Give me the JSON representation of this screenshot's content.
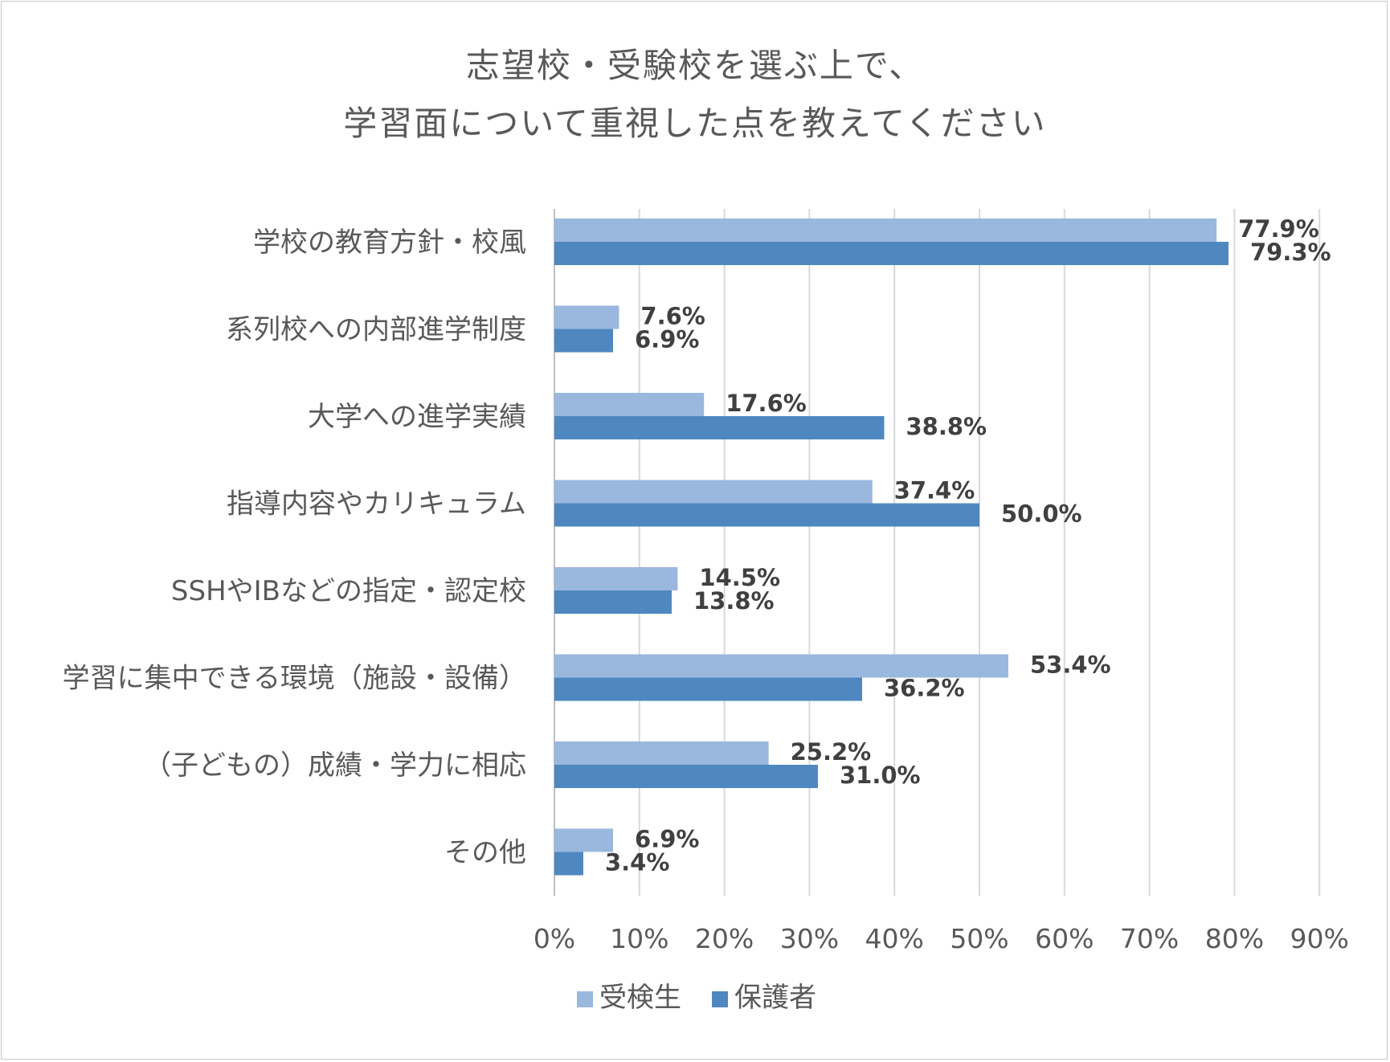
{
  "chart_data": {
    "type": "bar",
    "orientation": "horizontal",
    "title": "志望校・受験校を選ぶ上で、\n学習面について重視した点を教えてください",
    "title_lines": [
      "志望校・受験校を選ぶ上で、",
      "学習面について重視した点を教えてください"
    ],
    "categories": [
      "学校の教育方針・校風",
      "系列校への内部進学制度",
      "大学への進学実績",
      "指導内容やカリキュラム",
      "SSHやIBなどの指定・認定校",
      "学習に集中できる環境（施設・設備）",
      "（子どもの）成績・学力に相応",
      "その他"
    ],
    "series": [
      {
        "name": "受検生",
        "color": "#9ab7de",
        "values": [
          77.9,
          7.6,
          17.6,
          37.4,
          14.5,
          53.4,
          25.2,
          6.9
        ],
        "labels": [
          "77.9%",
          "7.6%",
          "17.6%",
          "37.4%",
          "14.5%",
          "53.4%",
          "25.2%",
          "6.9%"
        ]
      },
      {
        "name": "保護者",
        "color": "#4f88c0",
        "values": [
          79.3,
          6.9,
          38.8,
          50.0,
          13.8,
          36.2,
          31.0,
          3.4
        ],
        "labels": [
          "79.3%",
          "6.9%",
          "38.8%",
          "50.0%",
          "13.8%",
          "36.2%",
          "31.0%",
          "3.4%"
        ]
      }
    ],
    "xlim": [
      0,
      90
    ],
    "xticks": [
      0,
      10,
      20,
      30,
      40,
      50,
      60,
      70,
      80,
      90
    ],
    "xtick_labels": [
      "0%",
      "10%",
      "20%",
      "30%",
      "40%",
      "50%",
      "60%",
      "70%",
      "80%",
      "90%"
    ],
    "grid": "vertical",
    "gridline_color": "#d9d9d9",
    "legend": "bottom-center",
    "xlabel": "",
    "ylabel": ""
  }
}
